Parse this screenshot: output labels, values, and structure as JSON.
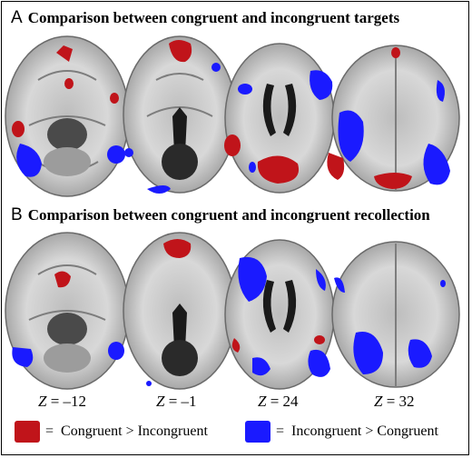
{
  "panels": [
    {
      "letter": "A",
      "title": "Comparison between congruent and incongruent targets"
    },
    {
      "letter": "B",
      "title": "Comparison between congruent and incongruent recollection"
    }
  ],
  "z_labels": [
    {
      "symbol": "Z",
      "value": "= –12"
    },
    {
      "symbol": "Z",
      "value": "= –1"
    },
    {
      "symbol": "Z",
      "value": "= 24"
    },
    {
      "symbol": "Z",
      "value": "= 32"
    }
  ],
  "legend": [
    {
      "label": "Congruent > Incongruent",
      "color": "#c0141a",
      "prefix": "="
    },
    {
      "label": "Incongruent > Congruent",
      "color": "#1a1aff",
      "prefix": "="
    }
  ],
  "colors": {
    "red": "#c0141a",
    "blue": "#1a1aff",
    "brain_light": "#d9d9d9",
    "brain_dark": "#8f8f8f",
    "ventricle": "#1a1a1a"
  }
}
